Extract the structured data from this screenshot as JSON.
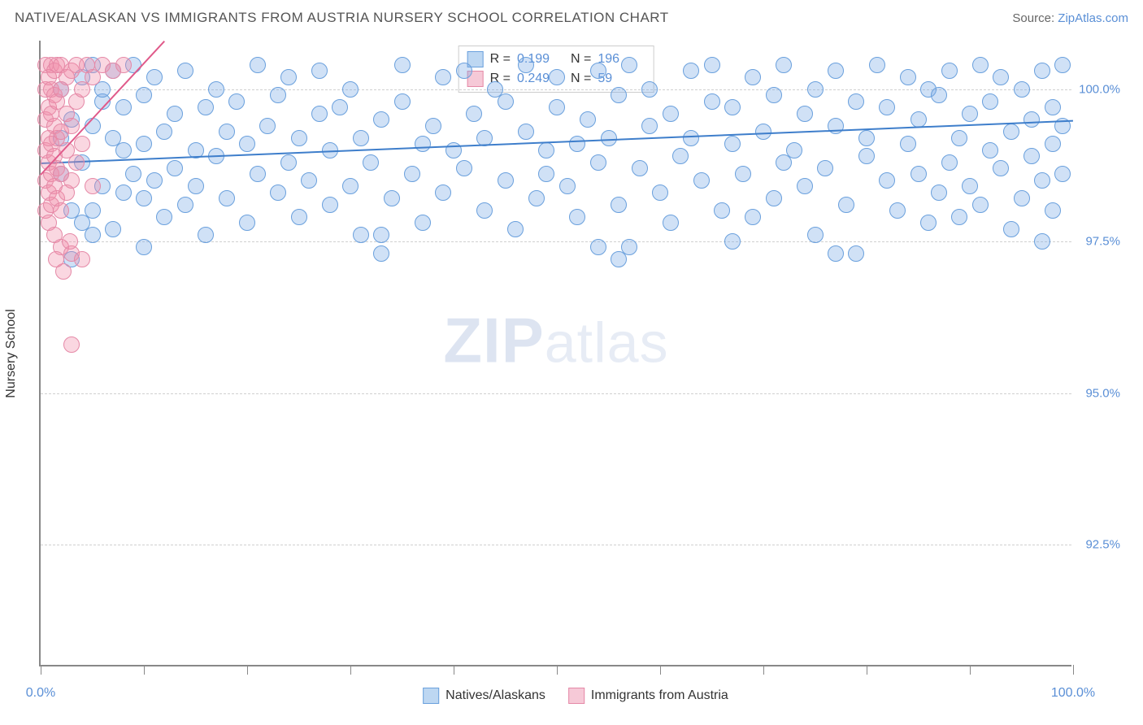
{
  "header": {
    "title": "NATIVE/ALASKAN VS IMMIGRANTS FROM AUSTRIA NURSERY SCHOOL CORRELATION CHART",
    "source_prefix": "Source: ",
    "source_link": "ZipAtlas.com"
  },
  "chart": {
    "type": "scatter",
    "y_axis_label": "Nursery School",
    "background_color": "#ffffff",
    "grid_color": "#d0d0d0",
    "axis_color": "#888888",
    "xlim": [
      0,
      100
    ],
    "ylim": [
      90.5,
      100.8
    ],
    "x_ticks": [
      0,
      10,
      20,
      30,
      40,
      50,
      60,
      70,
      80,
      90,
      100
    ],
    "x_tick_labels": {
      "0": "0.0%",
      "100": "100.0%"
    },
    "y_gridlines": [
      92.5,
      95.0,
      97.5,
      100.0
    ],
    "y_tick_labels": {
      "92.5": "92.5%",
      "95.0": "95.0%",
      "97.5": "97.5%",
      "100.0": "100.0%"
    },
    "marker_radius": 10,
    "marker_stroke_width": 1.5,
    "watermark_text_bold": "ZIP",
    "watermark_text_rest": "atlas",
    "series": [
      {
        "name": "Natives/Alaskans",
        "fill_color": "rgba(120,170,230,0.35)",
        "stroke_color": "#6aa0dd",
        "legend_fill": "#bdd7f2",
        "legend_stroke": "#6aa0dd",
        "stats": {
          "R": "0.199",
          "N": "196"
        },
        "trend": {
          "x1": 0,
          "y1": 98.8,
          "x2": 100,
          "y2": 99.5,
          "color": "#3e7ecb",
          "width": 2
        },
        "points": [
          [
            2,
            98.6
          ],
          [
            3,
            99.5
          ],
          [
            4,
            97.8
          ],
          [
            4,
            100.2
          ],
          [
            5,
            98.0
          ],
          [
            5,
            99.4
          ],
          [
            5,
            100.4
          ],
          [
            6,
            98.4
          ],
          [
            6,
            99.8
          ],
          [
            7,
            97.7
          ],
          [
            7,
            99.2
          ],
          [
            7,
            100.3
          ],
          [
            8,
            98.3
          ],
          [
            8,
            99.0
          ],
          [
            8,
            99.7
          ],
          [
            9,
            98.6
          ],
          [
            9,
            100.4
          ],
          [
            10,
            97.4
          ],
          [
            10,
            98.2
          ],
          [
            10,
            99.1
          ],
          [
            10,
            99.9
          ],
          [
            11,
            98.5
          ],
          [
            11,
            100.2
          ],
          [
            12,
            99.3
          ],
          [
            12,
            97.9
          ],
          [
            13,
            98.7
          ],
          [
            13,
            99.6
          ],
          [
            14,
            98.1
          ],
          [
            14,
            100.3
          ],
          [
            15,
            99.0
          ],
          [
            15,
            98.4
          ],
          [
            16,
            99.7
          ],
          [
            16,
            97.6
          ],
          [
            17,
            98.9
          ],
          [
            17,
            100.0
          ],
          [
            18,
            99.3
          ],
          [
            18,
            98.2
          ],
          [
            19,
            99.8
          ],
          [
            20,
            97.8
          ],
          [
            20,
            99.1
          ],
          [
            21,
            98.6
          ],
          [
            21,
            100.4
          ],
          [
            22,
            99.4
          ],
          [
            23,
            98.3
          ],
          [
            23,
            99.9
          ],
          [
            24,
            98.8
          ],
          [
            24,
            100.2
          ],
          [
            25,
            99.2
          ],
          [
            25,
            97.9
          ],
          [
            26,
            98.5
          ],
          [
            27,
            99.6
          ],
          [
            27,
            100.3
          ],
          [
            28,
            98.1
          ],
          [
            28,
            99.0
          ],
          [
            29,
            99.7
          ],
          [
            30,
            98.4
          ],
          [
            30,
            100.0
          ],
          [
            31,
            97.6
          ],
          [
            31,
            99.2
          ],
          [
            32,
            98.8
          ],
          [
            33,
            99.5
          ],
          [
            33,
            97.3
          ],
          [
            34,
            98.2
          ],
          [
            35,
            99.8
          ],
          [
            35,
            100.4
          ],
          [
            36,
            98.6
          ],
          [
            37,
            99.1
          ],
          [
            37,
            97.8
          ],
          [
            38,
            99.4
          ],
          [
            39,
            98.3
          ],
          [
            39,
            100.2
          ],
          [
            40,
            99.0
          ],
          [
            41,
            98.7
          ],
          [
            41,
            100.3
          ],
          [
            42,
            99.6
          ],
          [
            43,
            98.0
          ],
          [
            43,
            99.2
          ],
          [
            44,
            100.0
          ],
          [
            45,
            98.5
          ],
          [
            45,
            99.8
          ],
          [
            46,
            97.7
          ],
          [
            47,
            99.3
          ],
          [
            47,
            100.4
          ],
          [
            48,
            98.2
          ],
          [
            49,
            99.0
          ],
          [
            49,
            98.6
          ],
          [
            50,
            99.7
          ],
          [
            50,
            100.2
          ],
          [
            51,
            98.4
          ],
          [
            52,
            99.1
          ],
          [
            52,
            97.9
          ],
          [
            53,
            99.5
          ],
          [
            54,
            98.8
          ],
          [
            54,
            100.3
          ],
          [
            55,
            99.2
          ],
          [
            56,
            98.1
          ],
          [
            56,
            99.9
          ],
          [
            57,
            100.4
          ],
          [
            57,
            97.4
          ],
          [
            58,
            98.7
          ],
          [
            59,
            99.4
          ],
          [
            59,
            100.0
          ],
          [
            60,
            98.3
          ],
          [
            61,
            99.6
          ],
          [
            61,
            97.8
          ],
          [
            62,
            98.9
          ],
          [
            63,
            99.2
          ],
          [
            63,
            100.3
          ],
          [
            64,
            98.5
          ],
          [
            65,
            99.8
          ],
          [
            65,
            100.4
          ],
          [
            66,
            98.0
          ],
          [
            67,
            99.1
          ],
          [
            67,
            99.7
          ],
          [
            68,
            98.6
          ],
          [
            69,
            100.2
          ],
          [
            69,
            97.9
          ],
          [
            70,
            99.3
          ],
          [
            71,
            98.2
          ],
          [
            71,
            99.9
          ],
          [
            72,
            100.4
          ],
          [
            72,
            98.8
          ],
          [
            73,
            99.0
          ],
          [
            74,
            98.4
          ],
          [
            74,
            99.6
          ],
          [
            75,
            100.0
          ],
          [
            75,
            97.6
          ],
          [
            76,
            98.7
          ],
          [
            77,
            99.4
          ],
          [
            77,
            100.3
          ],
          [
            78,
            98.1
          ],
          [
            79,
            99.8
          ],
          [
            79,
            97.3
          ],
          [
            80,
            98.9
          ],
          [
            80,
            99.2
          ],
          [
            81,
            100.4
          ],
          [
            82,
            98.5
          ],
          [
            82,
            99.7
          ],
          [
            83,
            98.0
          ],
          [
            84,
            99.1
          ],
          [
            84,
            100.2
          ],
          [
            85,
            98.6
          ],
          [
            85,
            99.5
          ],
          [
            86,
            97.8
          ],
          [
            86,
            100.0
          ],
          [
            87,
            98.3
          ],
          [
            87,
            99.9
          ],
          [
            88,
            100.3
          ],
          [
            88,
            98.8
          ],
          [
            89,
            99.2
          ],
          [
            89,
            97.9
          ],
          [
            90,
            98.4
          ],
          [
            90,
            99.6
          ],
          [
            91,
            100.4
          ],
          [
            91,
            98.1
          ],
          [
            92,
            99.0
          ],
          [
            92,
            99.8
          ],
          [
            93,
            98.7
          ],
          [
            93,
            100.2
          ],
          [
            94,
            97.7
          ],
          [
            94,
            99.3
          ],
          [
            95,
            98.2
          ],
          [
            95,
            100.0
          ],
          [
            96,
            99.5
          ],
          [
            96,
            98.9
          ],
          [
            97,
            100.3
          ],
          [
            97,
            98.5
          ],
          [
            97,
            97.5
          ],
          [
            98,
            99.1
          ],
          [
            98,
            99.7
          ],
          [
            98,
            98.0
          ],
          [
            99,
            100.4
          ],
          [
            99,
            98.6
          ],
          [
            99,
            99.4
          ],
          [
            33,
            97.6
          ],
          [
            54,
            97.4
          ],
          [
            67,
            97.5
          ],
          [
            77,
            97.3
          ],
          [
            56,
            97.2
          ],
          [
            3,
            97.2
          ],
          [
            3,
            98.0
          ],
          [
            4,
            98.8
          ],
          [
            5,
            97.6
          ],
          [
            6,
            100.0
          ],
          [
            2,
            99.2
          ],
          [
            2,
            100.0
          ]
        ]
      },
      {
        "name": "Immigrants from Austria",
        "fill_color": "rgba(240,140,170,0.35)",
        "stroke_color": "#e589a7",
        "legend_fill": "#f6c9d7",
        "legend_stroke": "#e589a7",
        "stats": {
          "R": "0.249",
          "N": "59"
        },
        "trend": {
          "x1": 0,
          "y1": 98.6,
          "x2": 12,
          "y2": 100.8,
          "color": "#e05a8a",
          "width": 2
        },
        "points": [
          [
            0.5,
            98.0
          ],
          [
            0.5,
            98.5
          ],
          [
            0.5,
            99.0
          ],
          [
            0.5,
            99.5
          ],
          [
            0.5,
            100.0
          ],
          [
            0.5,
            100.4
          ],
          [
            0.8,
            97.8
          ],
          [
            0.8,
            98.3
          ],
          [
            0.8,
            98.8
          ],
          [
            0.8,
            99.2
          ],
          [
            0.8,
            99.7
          ],
          [
            0.8,
            100.2
          ],
          [
            1.0,
            98.1
          ],
          [
            1.0,
            98.6
          ],
          [
            1.0,
            99.1
          ],
          [
            1.0,
            99.6
          ],
          [
            1.0,
            100.0
          ],
          [
            1.0,
            100.4
          ],
          [
            1.3,
            97.6
          ],
          [
            1.3,
            98.4
          ],
          [
            1.3,
            98.9
          ],
          [
            1.3,
            99.4
          ],
          [
            1.3,
            99.9
          ],
          [
            1.3,
            100.3
          ],
          [
            1.6,
            98.2
          ],
          [
            1.6,
            98.7
          ],
          [
            1.6,
            99.2
          ],
          [
            1.6,
            99.8
          ],
          [
            1.6,
            100.4
          ],
          [
            2.0,
            97.4
          ],
          [
            2.0,
            98.0
          ],
          [
            2.0,
            98.6
          ],
          [
            2.0,
            99.3
          ],
          [
            2.0,
            100.0
          ],
          [
            2.0,
            100.4
          ],
          [
            2.5,
            98.3
          ],
          [
            2.5,
            99.0
          ],
          [
            2.5,
            99.6
          ],
          [
            2.5,
            100.2
          ],
          [
            3.0,
            97.3
          ],
          [
            3.0,
            98.5
          ],
          [
            3.0,
            99.4
          ],
          [
            3.0,
            100.3
          ],
          [
            3.5,
            98.8
          ],
          [
            3.5,
            99.8
          ],
          [
            3.5,
            100.4
          ],
          [
            4.0,
            97.2
          ],
          [
            4.0,
            99.1
          ],
          [
            4.0,
            100.0
          ],
          [
            4.5,
            100.4
          ],
          [
            5.0,
            98.4
          ],
          [
            5.0,
            100.2
          ],
          [
            6.0,
            100.4
          ],
          [
            7.0,
            100.3
          ],
          [
            8.0,
            100.4
          ],
          [
            3.0,
            95.8
          ],
          [
            2.2,
            97.0
          ],
          [
            2.8,
            97.5
          ],
          [
            1.5,
            97.2
          ]
        ]
      }
    ],
    "bottom_legend": [
      {
        "label": "Natives/Alaskans",
        "fill": "#bdd7f2",
        "stroke": "#6aa0dd"
      },
      {
        "label": "Immigrants from Austria",
        "fill": "#f6c9d7",
        "stroke": "#e589a7"
      }
    ]
  }
}
